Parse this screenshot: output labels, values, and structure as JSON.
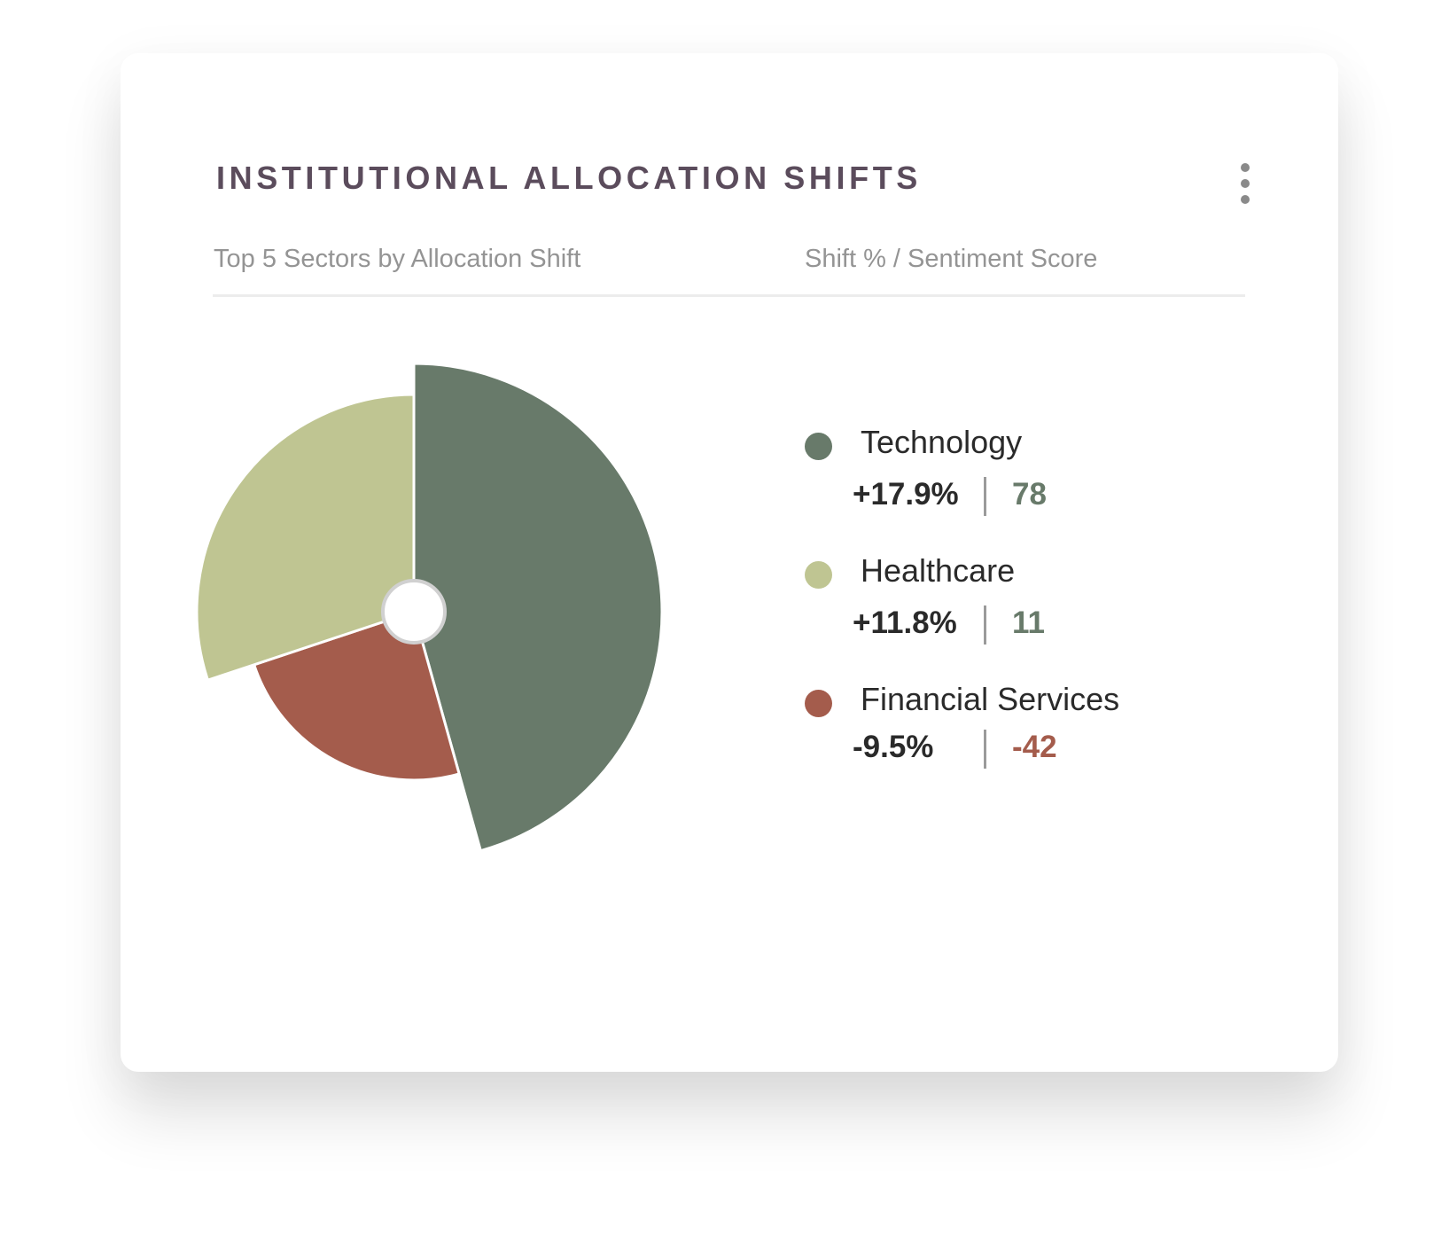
{
  "header": {
    "title": "INSTITUTIONAL ALLOCATION SHIFTS",
    "subtitle_left": "Top 5 Sectors by Allocation Shift",
    "subtitle_right": "Shift % / Sentiment Score",
    "menu_icon": "more-vertical-icon"
  },
  "colors": {
    "title": "#5b4c5c",
    "technology": "#687a6a",
    "healthcare": "#bfc592",
    "financial_services": "#a45c4c",
    "positive_score": "#687a6a",
    "negative_score": "#a45c4c"
  },
  "legend": [
    {
      "name": "Technology",
      "shift": "+17.9%",
      "score": "78"
    },
    {
      "name": "Healthcare",
      "shift": "+11.8%",
      "score": "11"
    },
    {
      "name": "Financial Services",
      "shift": "-9.5%",
      "score": "-42"
    }
  ],
  "chart_data": {
    "type": "pie",
    "title": "INSTITUTIONAL ALLOCATION SHIFTS",
    "subtitle": "Top 5 Sectors by Allocation Shift",
    "categories": [
      "Technology",
      "Healthcare",
      "Financial Services"
    ],
    "values": [
      17.9,
      11.8,
      9.5
    ],
    "shift_percent": [
      17.9,
      11.8,
      -9.5
    ],
    "sentiment_score": [
      78,
      11,
      -42
    ],
    "colors": [
      "#687a6a",
      "#bfc592",
      "#a45c4c"
    ],
    "legend_position": "right"
  }
}
